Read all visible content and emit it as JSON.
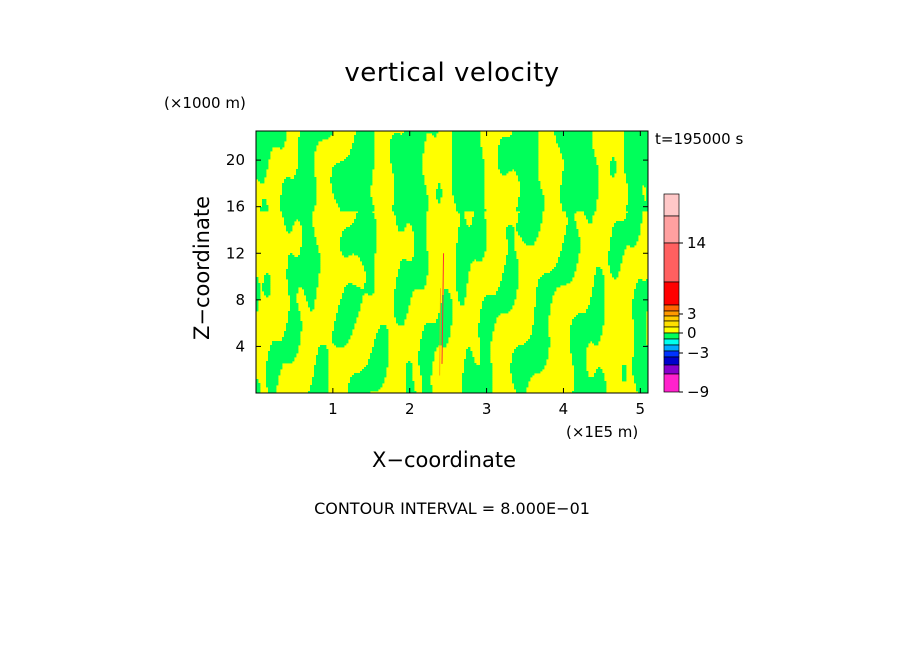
{
  "chart_data": {
    "type": "heatmap",
    "title": "vertical velocity",
    "ylabel": "Z−coordinate",
    "xlabel": "X−coordinate",
    "y_unit": "(×1000 m)",
    "x_unit": "(×1E5 m)",
    "time_label": "t=195000 s",
    "annotation": "CONTOUR INTERVAL = 8.000E−01",
    "xlim": [
      0,
      5.1
    ],
    "ylim": [
      0,
      22.5
    ],
    "x_ticks": [
      1,
      2,
      3,
      4,
      5
    ],
    "x_tick_labels": [
      "1",
      "2",
      "3",
      "4",
      "5"
    ],
    "y_ticks": [
      4,
      8,
      12,
      16,
      20
    ],
    "y_tick_labels": [
      "4",
      "8",
      "12",
      "16",
      "20"
    ],
    "field_colors": {
      "positive": "#ffff00",
      "negative": "#00ff5a",
      "strong_positive": "#ff3030"
    },
    "colorbar": {
      "tick_labels": [
        "14",
        "3",
        "0",
        "−3",
        "−9"
      ],
      "levels": [
        {
          "color": "#ff22cc",
          "value": -9
        },
        {
          "color": "#8800cc",
          "value": -7
        },
        {
          "color": "#0000cc",
          "value": -5
        },
        {
          "color": "#0033ff",
          "value": -3
        },
        {
          "color": "#00aaff",
          "value": -2
        },
        {
          "color": "#00ffee",
          "value": -1
        },
        {
          "color": "#00ff5a",
          "value": -0.5
        },
        {
          "color": "#ffff00",
          "value": 0.5
        },
        {
          "color": "#ffe000",
          "value": 1
        },
        {
          "color": "#ffcc00",
          "value": 2
        },
        {
          "color": "#ff9900",
          "value": 3
        },
        {
          "color": "#ff6600",
          "value": 4
        },
        {
          "color": "#ff0000",
          "value": 6
        },
        {
          "color": "#ff6060",
          "value": 10
        },
        {
          "color": "#ffa0a0",
          "value": 14
        },
        {
          "color": "#ffc8c8",
          "value": 18
        }
      ]
    }
  }
}
